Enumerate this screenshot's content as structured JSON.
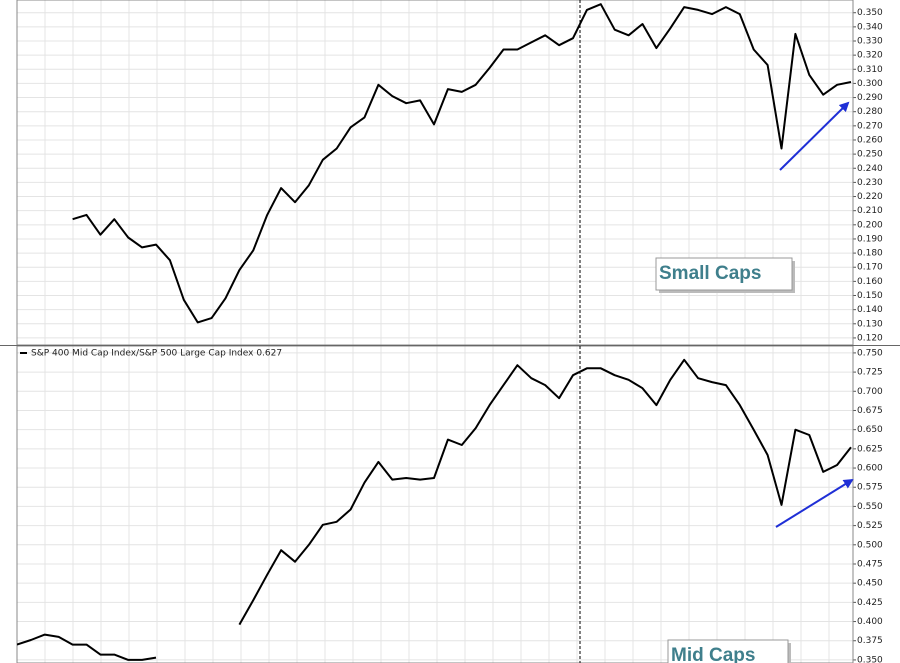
{
  "chart_data": [
    {
      "type": "line",
      "series": [
        {
          "color": "#000000",
          "values": [
            null,
            null,
            null,
            null,
            0.204,
            0.207,
            0.193,
            0.204,
            0.191,
            0.184,
            0.186,
            0.175,
            0.147,
            0.131,
            0.134,
            0.148,
            0.168,
            0.182,
            0.207,
            0.226,
            0.216,
            0.228,
            0.246,
            0.254,
            0.269,
            0.276,
            0.299,
            0.291,
            0.286,
            0.288,
            0.271,
            0.296,
            0.294,
            0.299,
            0.311,
            0.324,
            0.324,
            0.329,
            0.334,
            0.327,
            0.332,
            0.352,
            0.356,
            0.338,
            0.334,
            0.342,
            0.325,
            0.339,
            0.354,
            0.352,
            0.349,
            0.354,
            0.349,
            0.324,
            0.313,
            0.254,
            0.335,
            0.306,
            0.292,
            0.299,
            0.301
          ]
        }
      ],
      "ylim": [
        0.115,
        0.359
      ],
      "yticks": [
        {
          "value": 0.12,
          "label": "0.120"
        },
        {
          "value": 0.13,
          "label": "0.130"
        },
        {
          "value": 0.14,
          "label": "0.140"
        },
        {
          "value": 0.15,
          "label": "0.150"
        },
        {
          "value": 0.16,
          "label": "0.160"
        },
        {
          "value": 0.17,
          "label": "0.170"
        },
        {
          "value": 0.18,
          "label": "0.180"
        },
        {
          "value": 0.19,
          "label": "0.190"
        },
        {
          "value": 0.2,
          "label": "0.200"
        },
        {
          "value": 0.21,
          "label": "0.210"
        },
        {
          "value": 0.22,
          "label": "0.220"
        },
        {
          "value": 0.23,
          "label": "0.230"
        },
        {
          "value": 0.24,
          "label": "0.240"
        },
        {
          "value": 0.25,
          "label": "0.250"
        },
        {
          "value": 0.26,
          "label": "0.260"
        },
        {
          "value": 0.27,
          "label": "0.270"
        },
        {
          "value": 0.28,
          "label": "0.280"
        },
        {
          "value": 0.29,
          "label": "0.290"
        },
        {
          "value": 0.3,
          "label": "0.300"
        },
        {
          "value": 0.31,
          "label": "0.310"
        },
        {
          "value": 0.32,
          "label": "0.320"
        },
        {
          "value": 0.33,
          "label": "0.330"
        },
        {
          "value": 0.34,
          "label": "0.340"
        },
        {
          "value": 0.35,
          "label": "0.350"
        }
      ],
      "grid": true,
      "annotations": [
        {
          "text": "Small Caps"
        }
      ]
    },
    {
      "type": "line",
      "series": [
        {
          "name": "S&P 400 Mid Cap Index/S&P 500 Large Cap Index 0.627",
          "color": "#000000",
          "values": [
            0.37,
            0.376,
            0.383,
            0.38,
            0.37,
            0.37,
            0.357,
            0.357,
            0.35,
            0.35,
            0.353,
            null,
            null,
            null,
            null,
            null,
            0.396,
            0.428,
            0.461,
            0.493,
            0.478,
            0.5,
            0.526,
            0.53,
            0.546,
            0.581,
            0.608,
            0.585,
            0.587,
            0.585,
            0.587,
            0.637,
            0.63,
            0.652,
            0.682,
            0.708,
            0.734,
            0.717,
            0.708,
            0.691,
            0.721,
            0.73,
            0.73,
            0.721,
            0.715,
            0.704,
            0.682,
            0.715,
            0.741,
            0.717,
            0.712,
            0.708,
            0.682,
            0.65,
            0.617,
            0.552,
            0.65,
            0.643,
            0.595,
            0.604,
            0.627
          ]
        }
      ],
      "ylim": [
        0.346,
        0.759
      ],
      "yticks": [
        {
          "value": 0.35,
          "label": "0.350"
        },
        {
          "value": 0.375,
          "label": "0.375"
        },
        {
          "value": 0.4,
          "label": "0.400"
        },
        {
          "value": 0.425,
          "label": "0.425"
        },
        {
          "value": 0.45,
          "label": "0.450"
        },
        {
          "value": 0.475,
          "label": "0.475"
        },
        {
          "value": 0.5,
          "label": "0.500"
        },
        {
          "value": 0.525,
          "label": "0.525"
        },
        {
          "value": 0.55,
          "label": "0.550"
        },
        {
          "value": 0.575,
          "label": "0.575"
        },
        {
          "value": 0.6,
          "label": "0.600"
        },
        {
          "value": 0.625,
          "label": "0.625"
        },
        {
          "value": 0.65,
          "label": "0.650"
        },
        {
          "value": 0.675,
          "label": "0.675"
        },
        {
          "value": 0.7,
          "label": "0.700"
        },
        {
          "value": 0.725,
          "label": "0.725"
        },
        {
          "value": 0.75,
          "label": "0.750"
        }
      ],
      "grid": true,
      "annotations": [
        {
          "text": "Mid Caps"
        }
      ]
    }
  ]
}
